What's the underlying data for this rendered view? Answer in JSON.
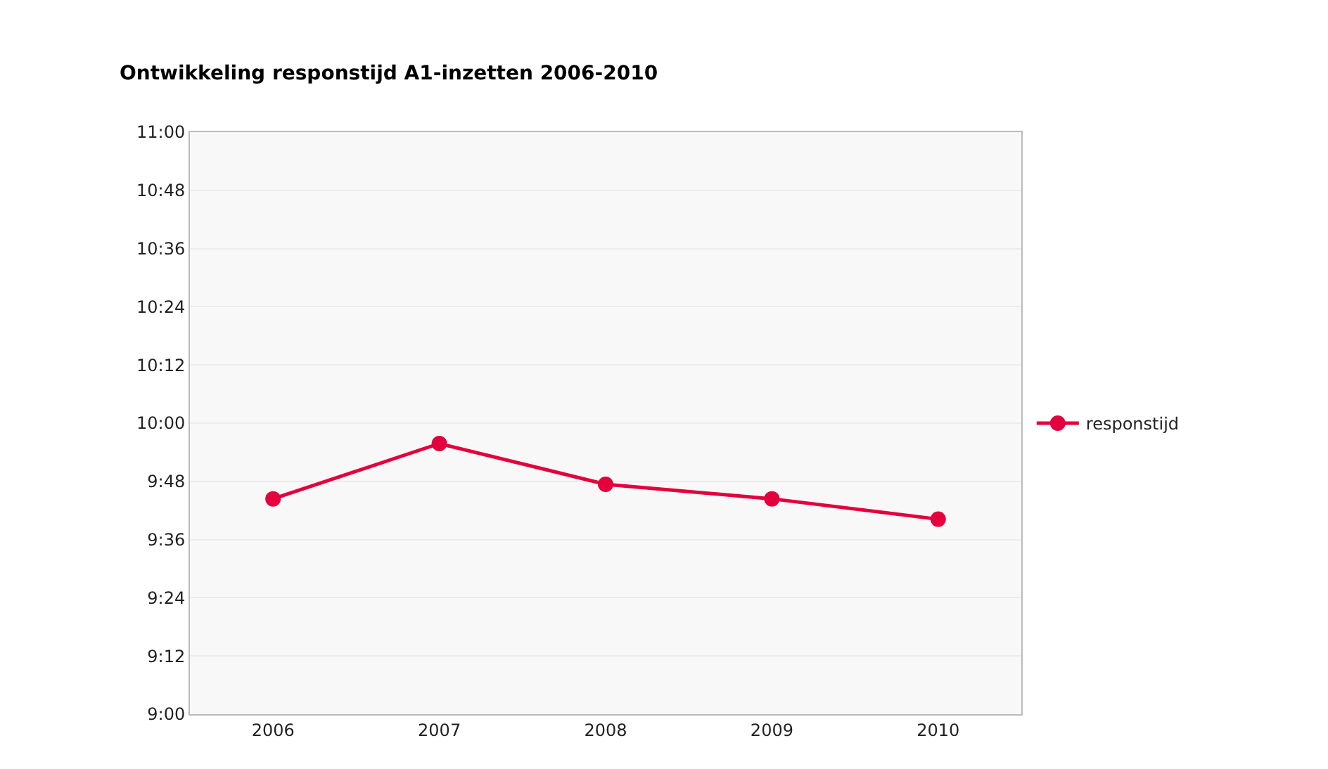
{
  "chart_data": {
    "type": "line",
    "title": "Ontwikkeling responstijd A1-inzetten 2006-2010",
    "categories": [
      "2006",
      "2007",
      "2008",
      "2009",
      "2010"
    ],
    "series": [
      {
        "name": "responstijd",
        "color": "#e3003c",
        "values": [
          9.74,
          9.93,
          9.79,
          9.74,
          9.67
        ]
      }
    ],
    "ylim": [
      9,
      11
    ],
    "yticks": [
      {
        "value": 9,
        "label": "9:00"
      },
      {
        "value": 9.2,
        "label": "9:12"
      },
      {
        "value": 9.4,
        "label": "9:24"
      },
      {
        "value": 9.6,
        "label": "9:36"
      },
      {
        "value": 9.8,
        "label": "9:48"
      },
      {
        "value": 10,
        "label": "10:00"
      },
      {
        "value": 10.2,
        "label": "10:12"
      },
      {
        "value": 10.4,
        "label": "10:24"
      },
      {
        "value": 10.6,
        "label": "10:36"
      },
      {
        "value": 10.8,
        "label": "10:48"
      },
      {
        "value": 11,
        "label": "11:00"
      }
    ],
    "grid": "y",
    "legend": "right",
    "marker": "circle",
    "line_style": "solid"
  }
}
